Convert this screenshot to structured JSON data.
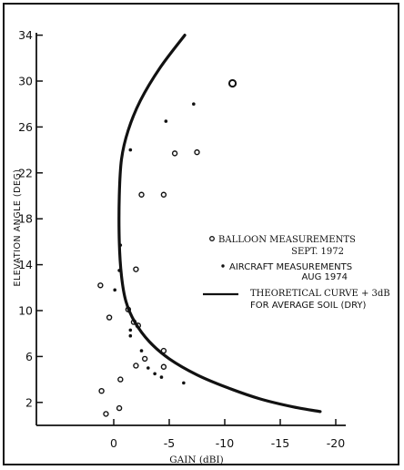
{
  "chart_data": {
    "type": "scatter",
    "title": "",
    "xlabel": "GAIN (dBI)",
    "ylabel": "ELEVATION ANGLE (DEG)",
    "xlim": [
      1.5,
      -20
    ],
    "ylim": [
      0,
      35
    ],
    "xticks": [
      {
        "value": 0,
        "label": "0"
      },
      {
        "value": -5,
        "label": "-5"
      },
      {
        "value": -10,
        "label": "-10"
      },
      {
        "value": -15,
        "label": "-15"
      },
      {
        "value": -20,
        "label": "-20"
      }
    ],
    "yticks": [
      {
        "value": 2,
        "label": "2"
      },
      {
        "value": 6,
        "label": "6"
      },
      {
        "value": 10,
        "label": "10"
      },
      {
        "value": 14,
        "label": "14"
      },
      {
        "value": 18,
        "label": "18"
      },
      {
        "value": 22,
        "label": "22"
      },
      {
        "value": 26,
        "label": "26"
      },
      {
        "value": 30,
        "label": "30"
      },
      {
        "value": 34,
        "label": "34"
      }
    ],
    "series": [
      {
        "name": "BALLOON MEASUREMENTS SEPT. 1972",
        "marker": "open-circle",
        "points": [
          {
            "x": -10.7,
            "y": 29.8
          },
          {
            "x": -5.5,
            "y": 23.7
          },
          {
            "x": -7.5,
            "y": 23.8
          },
          {
            "x": -2.5,
            "y": 20.1
          },
          {
            "x": -4.5,
            "y": 20.1
          },
          {
            "x": -2.0,
            "y": 13.6
          },
          {
            "x": 1.2,
            "y": 12.2
          },
          {
            "x": 0.4,
            "y": 9.4
          },
          {
            "x": -1.3,
            "y": 10.1
          },
          {
            "x": -1.8,
            "y": 9.0
          },
          {
            "x": -2.2,
            "y": 8.7
          },
          {
            "x": -4.5,
            "y": 6.5
          },
          {
            "x": -2.8,
            "y": 5.8
          },
          {
            "x": -2.0,
            "y": 5.2
          },
          {
            "x": -4.5,
            "y": 5.1
          },
          {
            "x": -0.6,
            "y": 4.0
          },
          {
            "x": 1.1,
            "y": 3.0
          },
          {
            "x": -0.5,
            "y": 1.5
          },
          {
            "x": 0.7,
            "y": 1.0
          }
        ]
      },
      {
        "name": "AIRCRAFT MEASUREMENTS AUG 1974",
        "marker": "dot",
        "points": [
          {
            "x": -7.2,
            "y": 28.0
          },
          {
            "x": -4.7,
            "y": 26.5
          },
          {
            "x": -1.5,
            "y": 24.0
          },
          {
            "x": -0.6,
            "y": 15.7
          },
          {
            "x": -0.5,
            "y": 13.5
          },
          {
            "x": -0.1,
            "y": 11.8
          },
          {
            "x": -1.5,
            "y": 8.3
          },
          {
            "x": -2.5,
            "y": 6.5
          },
          {
            "x": -1.5,
            "y": 7.8
          },
          {
            "x": -3.1,
            "y": 5.0
          },
          {
            "x": -3.7,
            "y": 4.5
          },
          {
            "x": -4.3,
            "y": 4.2
          },
          {
            "x": -6.3,
            "y": 3.7
          }
        ]
      },
      {
        "name": "THEORETICAL CURVE +3dB FOR AVERAGE SOIL (DRY)",
        "marker": "line",
        "points": [
          {
            "x": -6.4,
            "y": 34.0
          },
          {
            "x": -4.2,
            "y": 31.2
          },
          {
            "x": -2.4,
            "y": 28.3
          },
          {
            "x": -1.3,
            "y": 25.7
          },
          {
            "x": -0.7,
            "y": 23.2
          },
          {
            "x": -0.5,
            "y": 20.0
          },
          {
            "x": -0.5,
            "y": 16.0
          },
          {
            "x": -0.7,
            "y": 13.0
          },
          {
            "x": -1.1,
            "y": 10.8
          },
          {
            "x": -1.9,
            "y": 9.0
          },
          {
            "x": -3.2,
            "y": 7.3
          },
          {
            "x": -5.0,
            "y": 5.8
          },
          {
            "x": -7.5,
            "y": 4.4
          },
          {
            "x": -10.2,
            "y": 3.3
          },
          {
            "x": -13.2,
            "y": 2.3
          },
          {
            "x": -16.2,
            "y": 1.6
          },
          {
            "x": -18.6,
            "y": 1.2
          }
        ]
      }
    ],
    "legend": {
      "placement": "right",
      "balloon_line1": "BALLOON MEASUREMENTS",
      "balloon_line2": "SEPT. 1972",
      "aircraft_line1": "AIRCRAFT MEASUREMENTS",
      "aircraft_line2": "AUG 1974",
      "theory_line1": "THEORETICAL CURVE + 3dB",
      "theory_line2": "FOR AVERAGE SOIL (DRY)"
    },
    "grid": false,
    "line_color": "#111111"
  }
}
